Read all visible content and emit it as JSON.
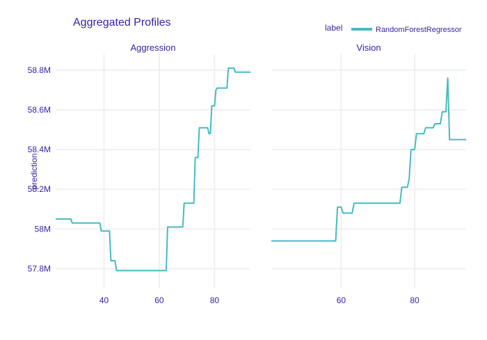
{
  "title": "Aggregated Profiles",
  "legend": {
    "title": "label",
    "entry": "RandomForestRegressor"
  },
  "colors": {
    "line": "#46bac2",
    "text": "#371ea3",
    "grid": "#f0f0f4"
  },
  "chart_data": {
    "type": "line",
    "ylabel": "prediction",
    "ylim": [
      57.7,
      58.88
    ],
    "yticks": [
      57.8,
      58.0,
      58.2,
      58.4,
      58.6,
      58.8
    ],
    "ytick_labels": [
      "57.8M",
      "58M",
      "58.2M",
      "58.4M",
      "58.6M",
      "58.8M"
    ],
    "panels": [
      {
        "title": "Aggression",
        "xlim": [
          22.5,
          93
        ],
        "xticks": [
          40,
          60,
          80
        ],
        "series": [
          {
            "name": "RandomForestRegressor",
            "x": [
              22.5,
              28,
              28.5,
              38.5,
              39,
              42,
              42.5,
              44,
              44.5,
              62.5,
              63,
              68.5,
              69,
              72.5,
              73,
              74,
              74.5,
              77.5,
              78,
              78.5,
              79,
              80,
              80.5,
              81,
              81.5,
              84.5,
              85,
              87,
              87.5,
              93
            ],
            "y": [
              58.05,
              58.05,
              58.03,
              58.03,
              57.99,
              57.99,
              57.84,
              57.84,
              57.79,
              57.79,
              58.01,
              58.01,
              58.13,
              58.13,
              58.36,
              58.36,
              58.51,
              58.51,
              58.48,
              58.48,
              58.62,
              58.62,
              58.7,
              58.71,
              58.71,
              58.71,
              58.81,
              58.81,
              58.79,
              58.79
            ]
          }
        ]
      },
      {
        "title": "Vision",
        "xlim": [
          41,
          94
        ],
        "xticks": [
          60,
          80
        ],
        "series": [
          {
            "name": "RandomForestRegressor",
            "x": [
              41,
              58.5,
              59,
              60,
              60.5,
              63,
              63.5,
              76,
              76.5,
              78,
              78.5,
              79,
              80,
              80.5,
              81,
              82.5,
              83,
              85,
              85.5,
              87,
              87.5,
              88.5,
              89,
              89.5,
              90,
              94
            ],
            "y": [
              57.94,
              57.94,
              58.11,
              58.11,
              58.08,
              58.08,
              58.13,
              58.13,
              58.21,
              58.21,
              58.25,
              58.4,
              58.4,
              58.48,
              58.48,
              58.48,
              58.51,
              58.51,
              58.53,
              58.53,
              58.59,
              58.59,
              58.76,
              58.45,
              58.45,
              58.45
            ]
          }
        ]
      }
    ]
  }
}
